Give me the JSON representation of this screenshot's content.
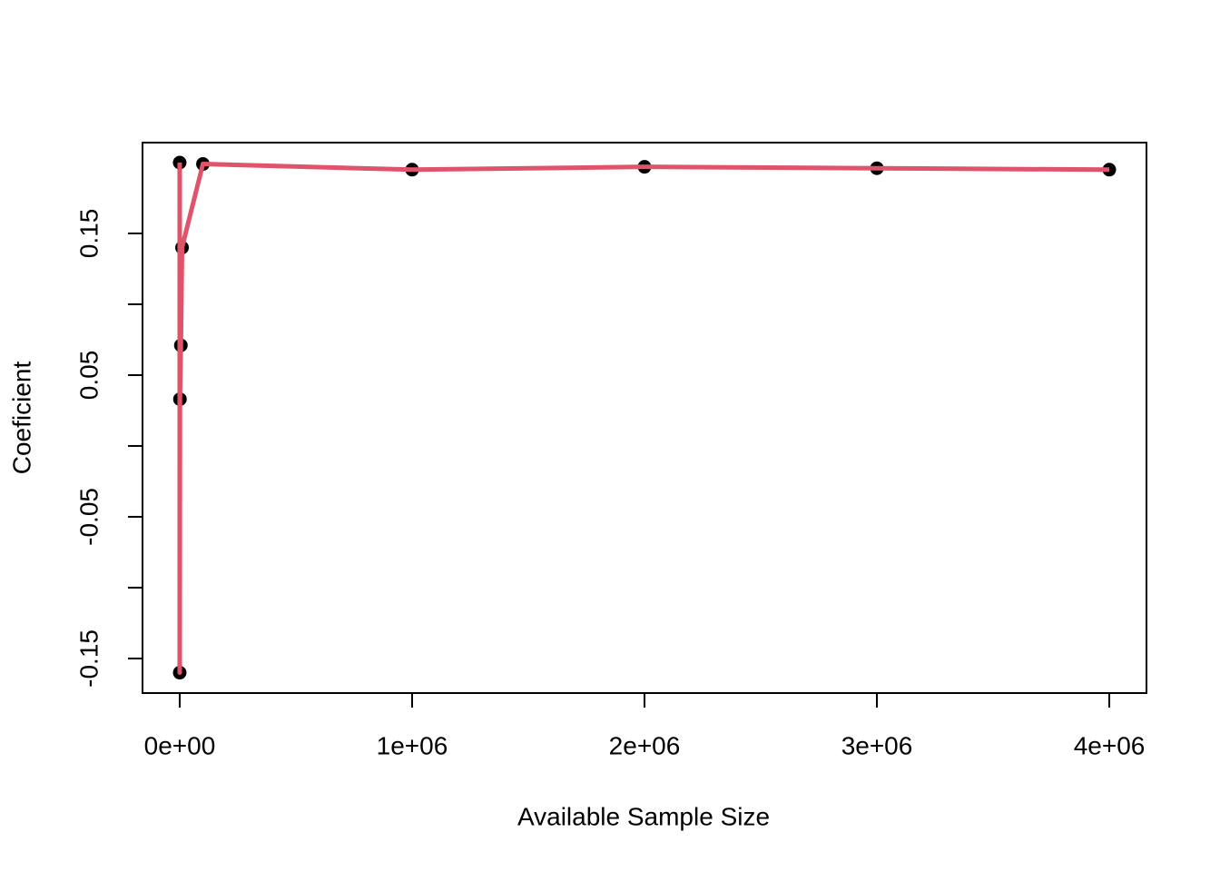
{
  "chart_data": {
    "type": "line",
    "x_label": "Available Sample Size",
    "y_label": "Coeficient",
    "x": [
      10,
      100,
      1000,
      5000,
      10000,
      100000,
      1000000,
      2000000,
      3000000,
      4000000
    ],
    "series": [
      {
        "color": "#DF536B",
        "point_color": "#000000",
        "values": [
          0.2,
          -0.16,
          0.033,
          0.071,
          0.14,
          0.199,
          0.195,
          0.197,
          0.196,
          0.195
        ]
      }
    ],
    "xlim": [
      -160000,
      4160000
    ],
    "ylim": [
      -0.1744,
      0.2141
    ],
    "xticks": [
      {
        "value": 0,
        "label": "0e+00"
      },
      {
        "value": 1000000,
        "label": "1e+06"
      },
      {
        "value": 2000000,
        "label": "2e+06"
      },
      {
        "value": 3000000,
        "label": "3e+06"
      },
      {
        "value": 4000000,
        "label": "4e+06"
      }
    ],
    "yticks": [
      -0.15,
      -0.1,
      -0.05,
      0,
      0.05,
      0.1,
      0.15
    ]
  }
}
